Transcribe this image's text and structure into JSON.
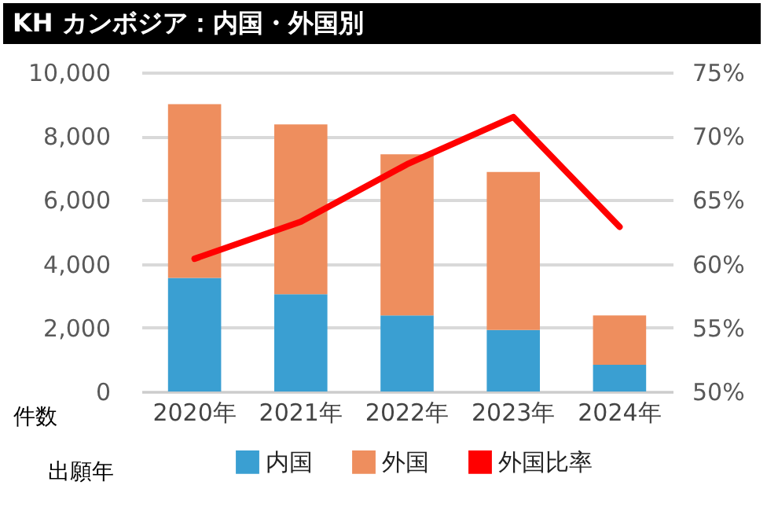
{
  "chart_data": {
    "type": "bar",
    "title": "KH カンボジア：内国・外国別",
    "categories": [
      "2020年",
      "2021年",
      "2022年",
      "2023年",
      "2024年"
    ],
    "series": [
      {
        "name": "内国",
        "color": "#3a9fd2",
        "values": [
          3560,
          3050,
          2380,
          1930,
          840
        ]
      },
      {
        "name": "外国",
        "color": "#ee8e5e",
        "values": [
          5440,
          5320,
          5050,
          4950,
          1540
        ]
      },
      {
        "name": "外国比率",
        "type": "line",
        "axis": "y2",
        "color": "#ff0000",
        "values": [
          60.4,
          63.3,
          67.8,
          71.5,
          62.9
        ]
      }
    ],
    "stacked": true,
    "ylabel": "件数",
    "xlabel": "出願年",
    "ylim": [
      0,
      10000
    ],
    "yticks": [
      {
        "value": 0,
        "label": "0"
      },
      {
        "value": 2000,
        "label": "2,000"
      },
      {
        "value": 4000,
        "label": "4,000"
      },
      {
        "value": 6000,
        "label": "6,000"
      },
      {
        "value": 8000,
        "label": "8,000"
      },
      {
        "value": 10000,
        "label": "10,000"
      }
    ],
    "y2lim": [
      50,
      75
    ],
    "y2ticks": [
      {
        "value": 50,
        "label": "50%"
      },
      {
        "value": 55,
        "label": "55%"
      },
      {
        "value": 60,
        "label": "60%"
      },
      {
        "value": 65,
        "label": "65%"
      },
      {
        "value": 70,
        "label": "70%"
      },
      {
        "value": 75,
        "label": "75%"
      }
    ],
    "grid": "y",
    "legend": "bottom"
  }
}
